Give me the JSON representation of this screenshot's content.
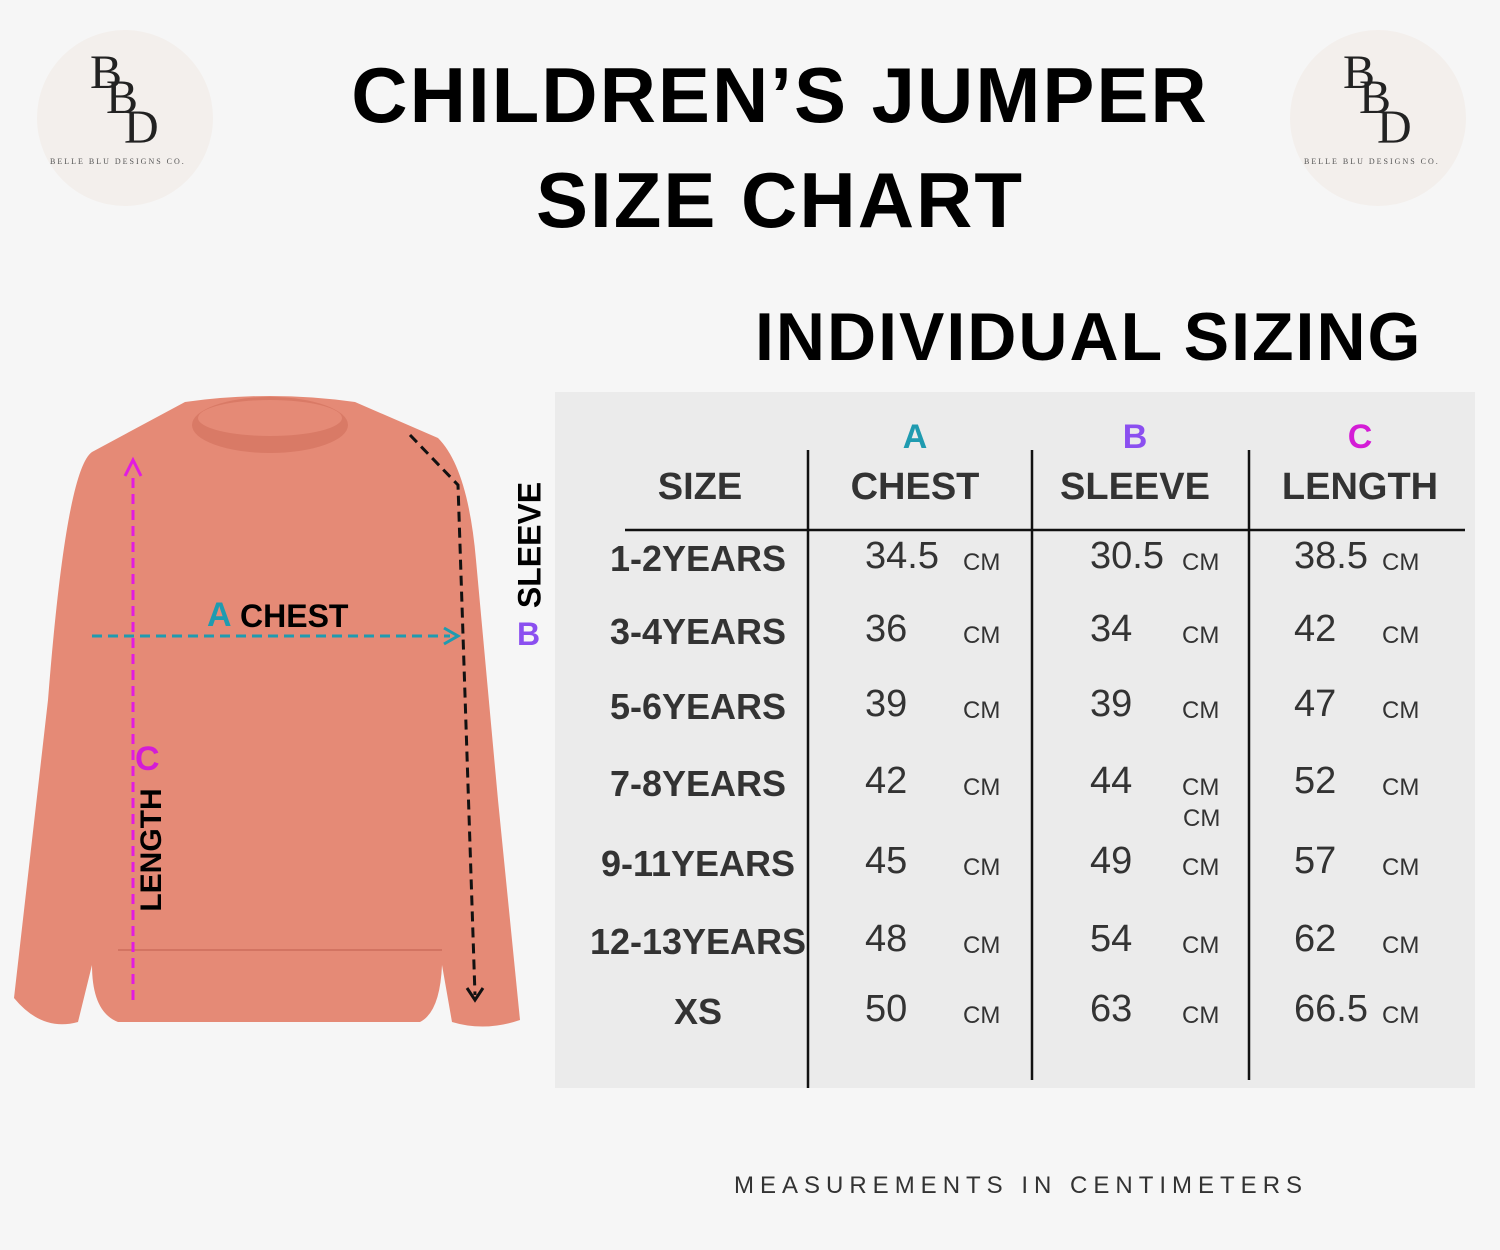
{
  "logo": {
    "letters": [
      "B",
      "B",
      "D"
    ],
    "name": "BELLE BLU DESIGNS CO."
  },
  "header": {
    "title_lines": [
      "CHILDREN’S JUMPER",
      "SIZE CHART"
    ],
    "subtitle": "INDIVIDUAL SIZING"
  },
  "diagram": {
    "chest_letter": "A",
    "chest_label": "CHEST",
    "sleeve_label": "SLEEVE",
    "sleeve_letter": "B",
    "length_letter": "C",
    "length_label": "LENGTH"
  },
  "table": {
    "columns": [
      {
        "name": "SIZE"
      },
      {
        "letter": "A",
        "name": "CHEST"
      },
      {
        "letter": "B",
        "name": "SLEEVE"
      },
      {
        "letter": "C",
        "name": "LENGTH"
      }
    ],
    "rows": [
      {
        "size": "1-2YEARS",
        "chest": 34.5,
        "sleeve": 30.5,
        "length": 38.5,
        "units": [
          "CM",
          "CM",
          "CM"
        ]
      },
      {
        "size": "3-4YEARS",
        "chest": 36,
        "sleeve": 34,
        "length": 42,
        "units": [
          "CM",
          "CM",
          "CM"
        ]
      },
      {
        "size": "5-6YEARS",
        "chest": 39,
        "sleeve": 39,
        "length": 47,
        "units": [
          "CM",
          "CM",
          "CM"
        ]
      },
      {
        "size": "7-8YEARS",
        "chest": 42,
        "sleeve": 44,
        "length": 52,
        "units": [
          "CM",
          "CM",
          "CM"
        ]
      },
      {
        "size": "9-11YEARS",
        "chest": 45,
        "sleeve": 49,
        "length": 57,
        "units": [
          "CM",
          "CM",
          "CM"
        ],
        "extra_units": [
          "CM"
        ]
      },
      {
        "size": "12-13YEARS",
        "chest": 48,
        "sleeve": 54,
        "length": 62,
        "units": [
          "CM",
          "CM",
          "CM"
        ]
      },
      {
        "size": "XS",
        "chest": 50,
        "sleeve": 63,
        "length": 66.5,
        "units": [
          "CM",
          "CM",
          "CM"
        ]
      }
    ]
  },
  "footer": {
    "note": "MEASUREMENTS IN CENTIMETERS"
  }
}
